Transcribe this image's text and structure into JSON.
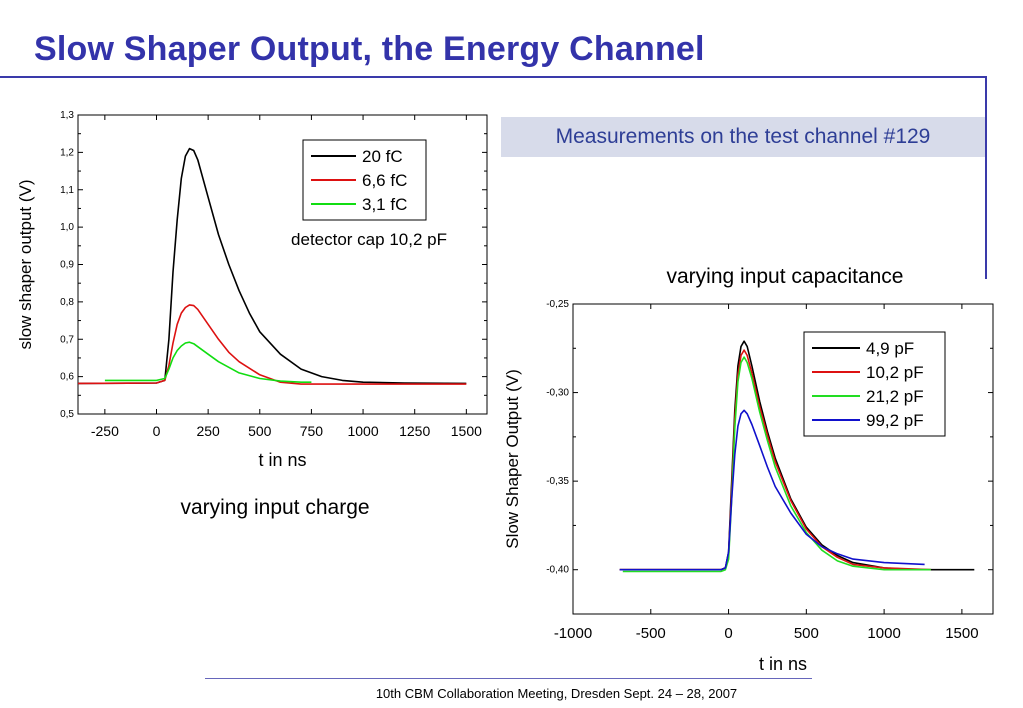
{
  "slide": {
    "title": "Slow Shaper Output, the Energy Channel",
    "measurement_note": "Measurements on the test channel #129",
    "footer": "10th CBM Collaboration Meeting, Dresden Sept. 24 – 28, 2007",
    "accent_color": "#3333aa"
  },
  "chart_data": [
    {
      "type": "line",
      "caption": "varying input charge",
      "xlabel": "t in ns",
      "ylabel": "slow shaper output (V)",
      "xlim": [
        -380,
        1600
      ],
      "ylim": [
        0.5,
        1.3
      ],
      "xticks": [
        "-250",
        "0",
        "250",
        "500",
        "750",
        "1000",
        "1250",
        "1500"
      ],
      "xtick_values": [
        -250,
        0,
        250,
        500,
        750,
        1000,
        1250,
        1500
      ],
      "yticks": [
        "0,5",
        "0,6",
        "0,7",
        "0,8",
        "0,9",
        "1,0",
        "1,1",
        "1,2",
        "1,3"
      ],
      "ytick_values": [
        0.5,
        0.6,
        0.7,
        0.8,
        0.9,
        1.0,
        1.1,
        1.2,
        1.3
      ],
      "annotation": "detector cap 10,2 pF",
      "legend_position": "top-right",
      "series": [
        {
          "name": "20 fC",
          "color": "#000000",
          "x": [
            -380,
            0,
            40,
            60,
            80,
            100,
            120,
            140,
            160,
            180,
            200,
            250,
            300,
            350,
            400,
            450,
            500,
            600,
            700,
            800,
            900,
            1000,
            1200,
            1500
          ],
          "y": [
            0.582,
            0.583,
            0.59,
            0.7,
            0.88,
            1.02,
            1.13,
            1.19,
            1.21,
            1.205,
            1.18,
            1.08,
            0.98,
            0.9,
            0.83,
            0.77,
            0.72,
            0.66,
            0.62,
            0.6,
            0.59,
            0.585,
            0.583,
            0.582
          ]
        },
        {
          "name": "6,6 fC",
          "color": "#dd1111",
          "x": [
            -380,
            0,
            40,
            60,
            80,
            100,
            120,
            140,
            160,
            180,
            200,
            250,
            300,
            350,
            400,
            500,
            600,
            700,
            800,
            1000,
            1500
          ],
          "y": [
            0.582,
            0.583,
            0.59,
            0.63,
            0.69,
            0.74,
            0.77,
            0.785,
            0.792,
            0.79,
            0.78,
            0.74,
            0.7,
            0.665,
            0.64,
            0.605,
            0.585,
            0.58,
            0.58,
            0.58,
            0.58
          ]
        },
        {
          "name": "3,1 fC",
          "color": "#11dd11",
          "x": [
            -250,
            0,
            40,
            60,
            80,
            100,
            120,
            140,
            160,
            180,
            200,
            250,
            300,
            350,
            400,
            500,
            600,
            700,
            750
          ],
          "y": [
            0.59,
            0.59,
            0.595,
            0.62,
            0.65,
            0.67,
            0.682,
            0.69,
            0.692,
            0.688,
            0.68,
            0.66,
            0.64,
            0.625,
            0.61,
            0.595,
            0.588,
            0.585,
            0.585
          ]
        }
      ]
    },
    {
      "type": "line",
      "caption": "varying input capacitance",
      "xlabel": "t in ns",
      "ylabel": "Slow Shaper Output (V)",
      "xlim": [
        -1000,
        1700
      ],
      "ylim": [
        -0.425,
        -0.25
      ],
      "xticks": [
        "-1000",
        "-500",
        "0",
        "500",
        "1000",
        "1500"
      ],
      "xtick_values": [
        -1000,
        -500,
        0,
        500,
        1000,
        1500
      ],
      "yticks": [
        "-0,40",
        "-0,35",
        "-0,30",
        "-0,25"
      ],
      "ytick_values": [
        -0.4,
        -0.35,
        -0.3,
        -0.25
      ],
      "legend_position": "top-right",
      "series": [
        {
          "name": "4,9 pF",
          "color": "#000000",
          "x": [
            -700,
            -100,
            -50,
            -20,
            0,
            20,
            40,
            60,
            80,
            100,
            120,
            150,
            200,
            250,
            300,
            400,
            500,
            600,
            700,
            800,
            1000,
            1200,
            1580
          ],
          "y": [
            -0.4,
            -0.4,
            -0.4,
            -0.399,
            -0.39,
            -0.35,
            -0.31,
            -0.285,
            -0.274,
            -0.271,
            -0.274,
            -0.285,
            -0.305,
            -0.322,
            -0.337,
            -0.36,
            -0.376,
            -0.386,
            -0.392,
            -0.396,
            -0.399,
            -0.4,
            -0.4
          ]
        },
        {
          "name": "10,2 pF",
          "color": "#dd1111",
          "x": [
            -700,
            -100,
            -50,
            -20,
            0,
            20,
            40,
            60,
            80,
            100,
            120,
            150,
            200,
            250,
            300,
            400,
            500,
            600,
            700,
            800,
            1000,
            1300
          ],
          "y": [
            -0.4,
            -0.4,
            -0.4,
            -0.399,
            -0.392,
            -0.355,
            -0.315,
            -0.29,
            -0.279,
            -0.276,
            -0.279,
            -0.289,
            -0.308,
            -0.324,
            -0.339,
            -0.361,
            -0.377,
            -0.387,
            -0.393,
            -0.397,
            -0.399,
            -0.4
          ]
        },
        {
          "name": "21,2 pF",
          "color": "#22dd22",
          "x": [
            -680,
            -100,
            -50,
            -20,
            0,
            20,
            40,
            60,
            80,
            100,
            120,
            150,
            200,
            250,
            300,
            400,
            500,
            600,
            700,
            800,
            1000,
            1300
          ],
          "y": [
            -0.401,
            -0.401,
            -0.401,
            -0.4,
            -0.394,
            -0.36,
            -0.32,
            -0.294,
            -0.283,
            -0.28,
            -0.283,
            -0.292,
            -0.311,
            -0.327,
            -0.342,
            -0.364,
            -0.379,
            -0.389,
            -0.395,
            -0.398,
            -0.4,
            -0.4
          ]
        },
        {
          "name": "99,2 pF",
          "color": "#1111cc",
          "x": [
            -700,
            -100,
            -50,
            -20,
            0,
            20,
            40,
            60,
            80,
            100,
            120,
            150,
            200,
            250,
            300,
            400,
            500,
            600,
            700,
            800,
            1000,
            1260
          ],
          "y": [
            -0.4,
            -0.4,
            -0.4,
            -0.399,
            -0.39,
            -0.36,
            -0.335,
            -0.319,
            -0.312,
            -0.31,
            -0.312,
            -0.318,
            -0.33,
            -0.342,
            -0.353,
            -0.368,
            -0.38,
            -0.387,
            -0.391,
            -0.394,
            -0.396,
            -0.397
          ]
        }
      ]
    }
  ]
}
